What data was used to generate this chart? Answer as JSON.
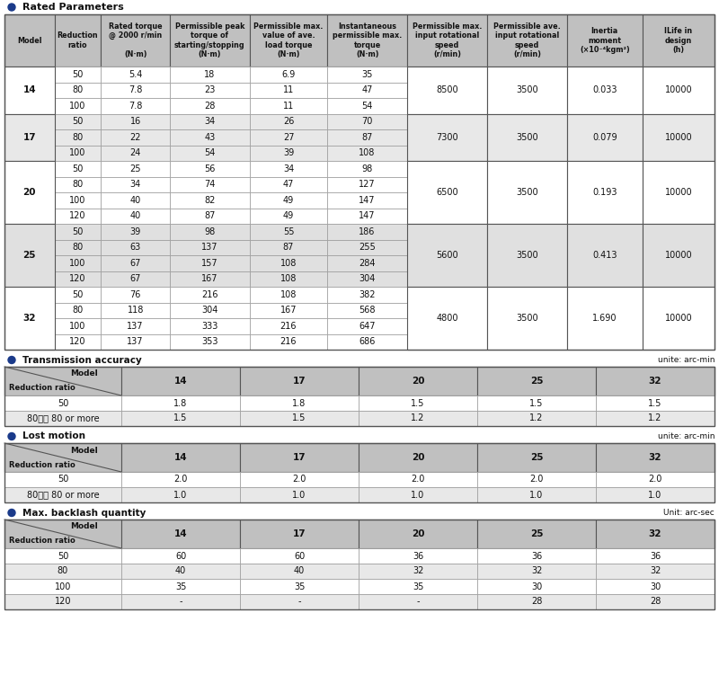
{
  "title1": "Rated Parameters",
  "title2": "Transmission accuracy",
  "title3": "Lost motion",
  "title4": "Max. backlash quantity",
  "unit2": "unite: arc-min",
  "unit3": "unite: arc-min",
  "unit4": "Unit: arc-sec",
  "header1": [
    "Model",
    "Reduction\nratio",
    "Rated torque\n@ 2000 r/min\n\n(N·m)",
    "Permissible peak\ntorque of\nstarting/stopping\n(N·m)",
    "Permissible max.\nvalue of ave.\nload torque\n(N·m)",
    "Instantaneous\npermissible max.\ntorque\n(N·m)",
    "Permissible max.\ninput rotational\nspeed\n(r/min)",
    "Permissible ave.\ninput rotational\nspeed\n(r/min)",
    "Inertia\nmoment\n(×10⁻⁴kgm²)",
    "ILife in\ndesign\n(h)"
  ],
  "rated_data": [
    [
      "14",
      "50",
      "5.4",
      "18",
      "6.9",
      "35",
      "8500",
      "3500",
      "0.033",
      "10000"
    ],
    [
      "",
      "80",
      "7.8",
      "23",
      "11",
      "47",
      "",
      "",
      "",
      ""
    ],
    [
      "",
      "100",
      "7.8",
      "28",
      "11",
      "54",
      "",
      "",
      "",
      ""
    ],
    [
      "17",
      "50",
      "16",
      "34",
      "26",
      "70",
      "7300",
      "3500",
      "0.079",
      "10000"
    ],
    [
      "",
      "80",
      "22",
      "43",
      "27",
      "87",
      "",
      "",
      "",
      ""
    ],
    [
      "",
      "100",
      "24",
      "54",
      "39",
      "108",
      "",
      "",
      "",
      ""
    ],
    [
      "20",
      "50",
      "25",
      "56",
      "34",
      "98",
      "6500",
      "3500",
      "0.193",
      "10000"
    ],
    [
      "",
      "80",
      "34",
      "74",
      "47",
      "127",
      "",
      "",
      "",
      ""
    ],
    [
      "",
      "100",
      "40",
      "82",
      "49",
      "147",
      "",
      "",
      "",
      ""
    ],
    [
      "",
      "120",
      "40",
      "87",
      "49",
      "147",
      "",
      "",
      "",
      ""
    ],
    [
      "25",
      "50",
      "39",
      "98",
      "55",
      "186",
      "5600",
      "3500",
      "0.413",
      "10000"
    ],
    [
      "",
      "80",
      "63",
      "137",
      "87",
      "255",
      "",
      "",
      "",
      ""
    ],
    [
      "",
      "100",
      "67",
      "157",
      "108",
      "284",
      "",
      "",
      "",
      ""
    ],
    [
      "",
      "120",
      "67",
      "167",
      "108",
      "304",
      "",
      "",
      "",
      ""
    ],
    [
      "32",
      "50",
      "76",
      "216",
      "108",
      "382",
      "4800",
      "3500",
      "1.690",
      "10000"
    ],
    [
      "",
      "80",
      "118",
      "304",
      "167",
      "568",
      "",
      "",
      "",
      ""
    ],
    [
      "",
      "100",
      "137",
      "333",
      "216",
      "647",
      "",
      "",
      "",
      ""
    ],
    [
      "",
      "120",
      "137",
      "353",
      "216",
      "686",
      "",
      "",
      "",
      ""
    ]
  ],
  "model_groups": [
    {
      "model": "14",
      "start": 0,
      "end": 2,
      "color": "#ffffff"
    },
    {
      "model": "17",
      "start": 3,
      "end": 5,
      "color": "#e8e8e8"
    },
    {
      "model": "20",
      "start": 6,
      "end": 9,
      "color": "#ffffff"
    },
    {
      "model": "25",
      "start": 10,
      "end": 13,
      "color": "#e0e0e0"
    },
    {
      "model": "32",
      "start": 14,
      "end": 17,
      "color": "#ffffff"
    }
  ],
  "trans_data": [
    [
      "50",
      "1.8",
      "1.8",
      "1.5",
      "1.5",
      "1.5"
    ],
    [
      "80以上 80 or more",
      "1.5",
      "1.5",
      "1.2",
      "1.2",
      "1.2"
    ]
  ],
  "lost_data": [
    [
      "50",
      "2.0",
      "2.0",
      "2.0",
      "2.0",
      "2.0"
    ],
    [
      "80以上 80 or more",
      "1.0",
      "1.0",
      "1.0",
      "1.0",
      "1.0"
    ]
  ],
  "backlash_data": [
    [
      "50",
      "60",
      "60",
      "36",
      "36",
      "36"
    ],
    [
      "80",
      "40",
      "40",
      "32",
      "32",
      "32"
    ],
    [
      "100",
      "35",
      "35",
      "35",
      "30",
      "30"
    ],
    [
      "120",
      "-",
      "-",
      "-",
      "28",
      "28"
    ]
  ],
  "models_row": [
    "14",
    "17",
    "20",
    "25",
    "32"
  ],
  "bg_white": "#ffffff",
  "bg_header": "#c0c0c0",
  "bg_gray1": "#e8e8e8",
  "bg_gray2": "#d8d8d8",
  "border_color": "#999999",
  "border_dark": "#555555",
  "text_color": "#111111",
  "bullet_color": "#1a3a8a",
  "title_bg": "#f0f0f0"
}
